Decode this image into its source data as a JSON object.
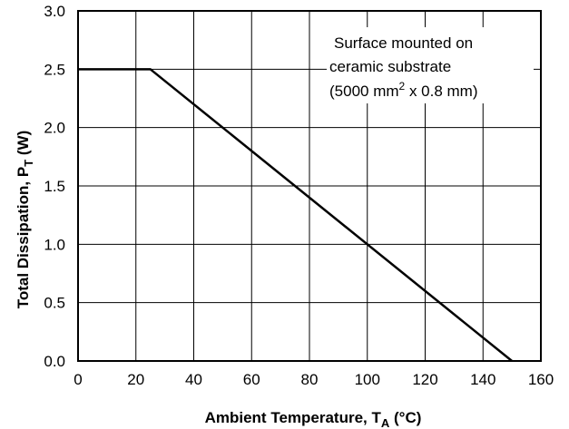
{
  "chart_data": {
    "type": "line",
    "title": "",
    "xlabel": {
      "main": "Ambient Temperature, T",
      "sub": "A",
      "unit": " (°C)"
    },
    "ylabel": {
      "main": "Total Dissipation, P",
      "sub": "T",
      "unit": " (W)"
    },
    "xlim": [
      0,
      160
    ],
    "ylim": [
      0,
      3.0
    ],
    "x_ticks": [
      "0",
      "20",
      "40",
      "60",
      "80",
      "100",
      "120",
      "140",
      "160"
    ],
    "y_ticks": [
      "0.0",
      "0.5",
      "1.0",
      "1.5",
      "2.0",
      "2.5",
      "3.0"
    ],
    "grid": true,
    "series": [
      {
        "x": [
          0,
          25,
          150
        ],
        "y": [
          2.5,
          2.5,
          0
        ]
      }
    ],
    "annotation": {
      "line1": "Surface mounted on",
      "line2": "ceramic substrate",
      "line3_pre": "(5000 mm",
      "line3_sup": "2",
      "line3_post": " x 0.8 mm)"
    }
  }
}
